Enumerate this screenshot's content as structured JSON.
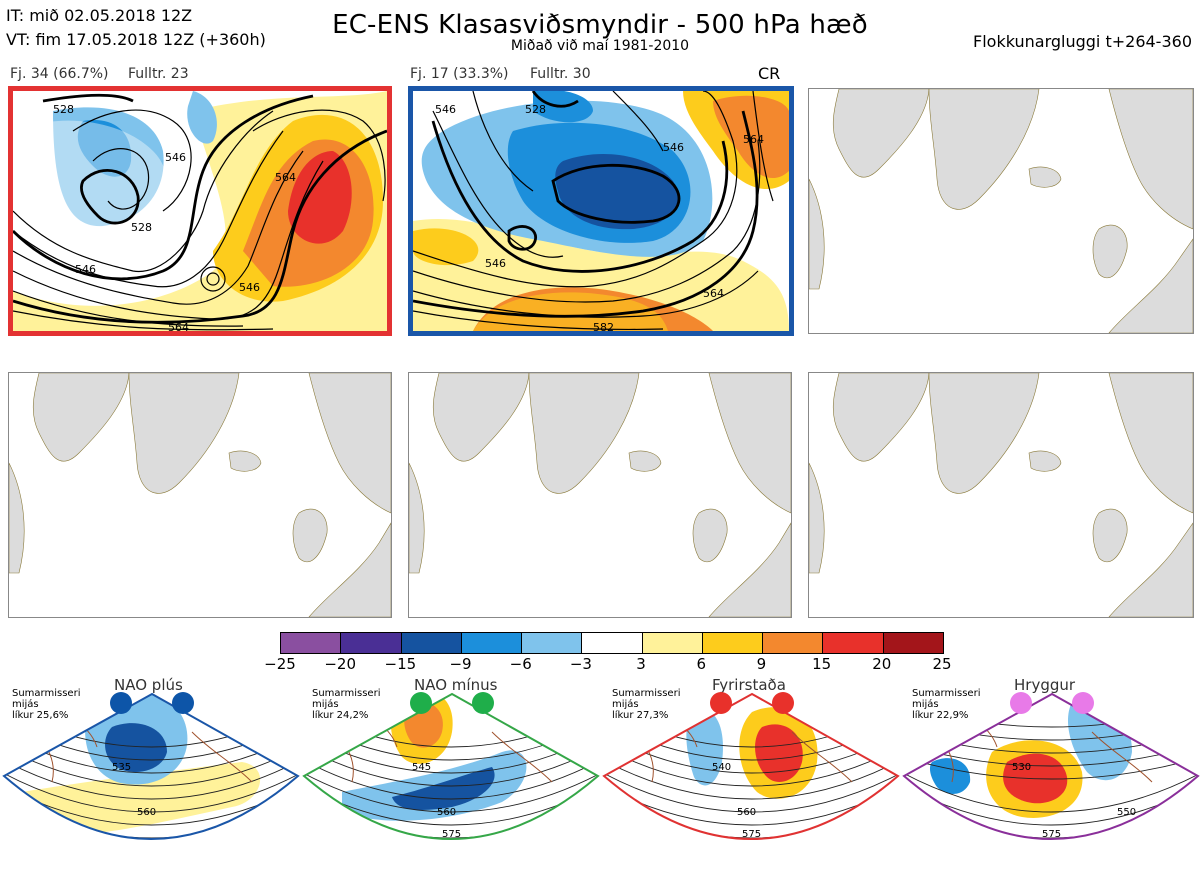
{
  "header": {
    "it_line": "IT: mið 02.05.2018 12Z",
    "vt_line": "VT: fim 17.05.2018 12Z  (+360h)",
    "title": "EC-ENS Klasasviðsmyndir - 500 hPa hæð",
    "subtitle": "Miðað við maí 1981-2010",
    "window": "Flokkunargluggi t+264-360"
  },
  "clusters": [
    {
      "label_count": "Fj. 34 (66.7%)",
      "label_rep": "Fulltr. 23",
      "frame_color": "#e33232",
      "contours": [
        "528",
        "546",
        "528",
        "546",
        "564",
        "546",
        "564"
      ]
    },
    {
      "label_count": "Fj. 17 (33.3%)",
      "label_rep": "Fulltr. 30",
      "tag": "CR",
      "frame_color": "#1a56a8",
      "contours": [
        "546",
        "528",
        "546",
        "546",
        "564",
        "564",
        "582"
      ]
    }
  ],
  "colorbar": {
    "ticks": [
      "−25",
      "−20",
      "−15",
      "−9",
      "−6",
      "−3",
      "3",
      "6",
      "9",
      "15",
      "20",
      "25"
    ],
    "colors": [
      "#8a4fa0",
      "#4a2f95",
      "#1553a0",
      "#1c8fdb",
      "#7fc3ec",
      "#ffffff",
      "#fff29a",
      "#fdcc1c",
      "#f3882e",
      "#e8312b",
      "#a3151a"
    ]
  },
  "regimes": [
    {
      "name": "NAO plús",
      "note": [
        "Sumarmisseri",
        "mijás",
        "líkur 25,6%"
      ],
      "dot_color": "#0d55a8",
      "frame_color": "#1a56a8",
      "labels": [
        "535",
        "560"
      ]
    },
    {
      "name": "NAO mínus",
      "note": [
        "Sumarmisseri",
        "mijás",
        "líkur 24,2%"
      ],
      "dot_color": "#1fae4a",
      "frame_color": "#35a748",
      "labels": [
        "545",
        "560",
        "575"
      ]
    },
    {
      "name": "Fyrirstaða",
      "note": [
        "Sumarmisseri",
        "mijás",
        "líkur 27,3%"
      ],
      "dot_color": "#e8312b",
      "frame_color": "#e03232",
      "labels": [
        "540",
        "560",
        "575"
      ]
    },
    {
      "name": "Hryggur",
      "note": [
        "Sumarmisseri",
        "mijás",
        "líkur 22,9%"
      ],
      "dot_color": "#e87ae8",
      "frame_color": "#8a2f9a",
      "labels": [
        "530",
        "550",
        "575"
      ]
    }
  ]
}
